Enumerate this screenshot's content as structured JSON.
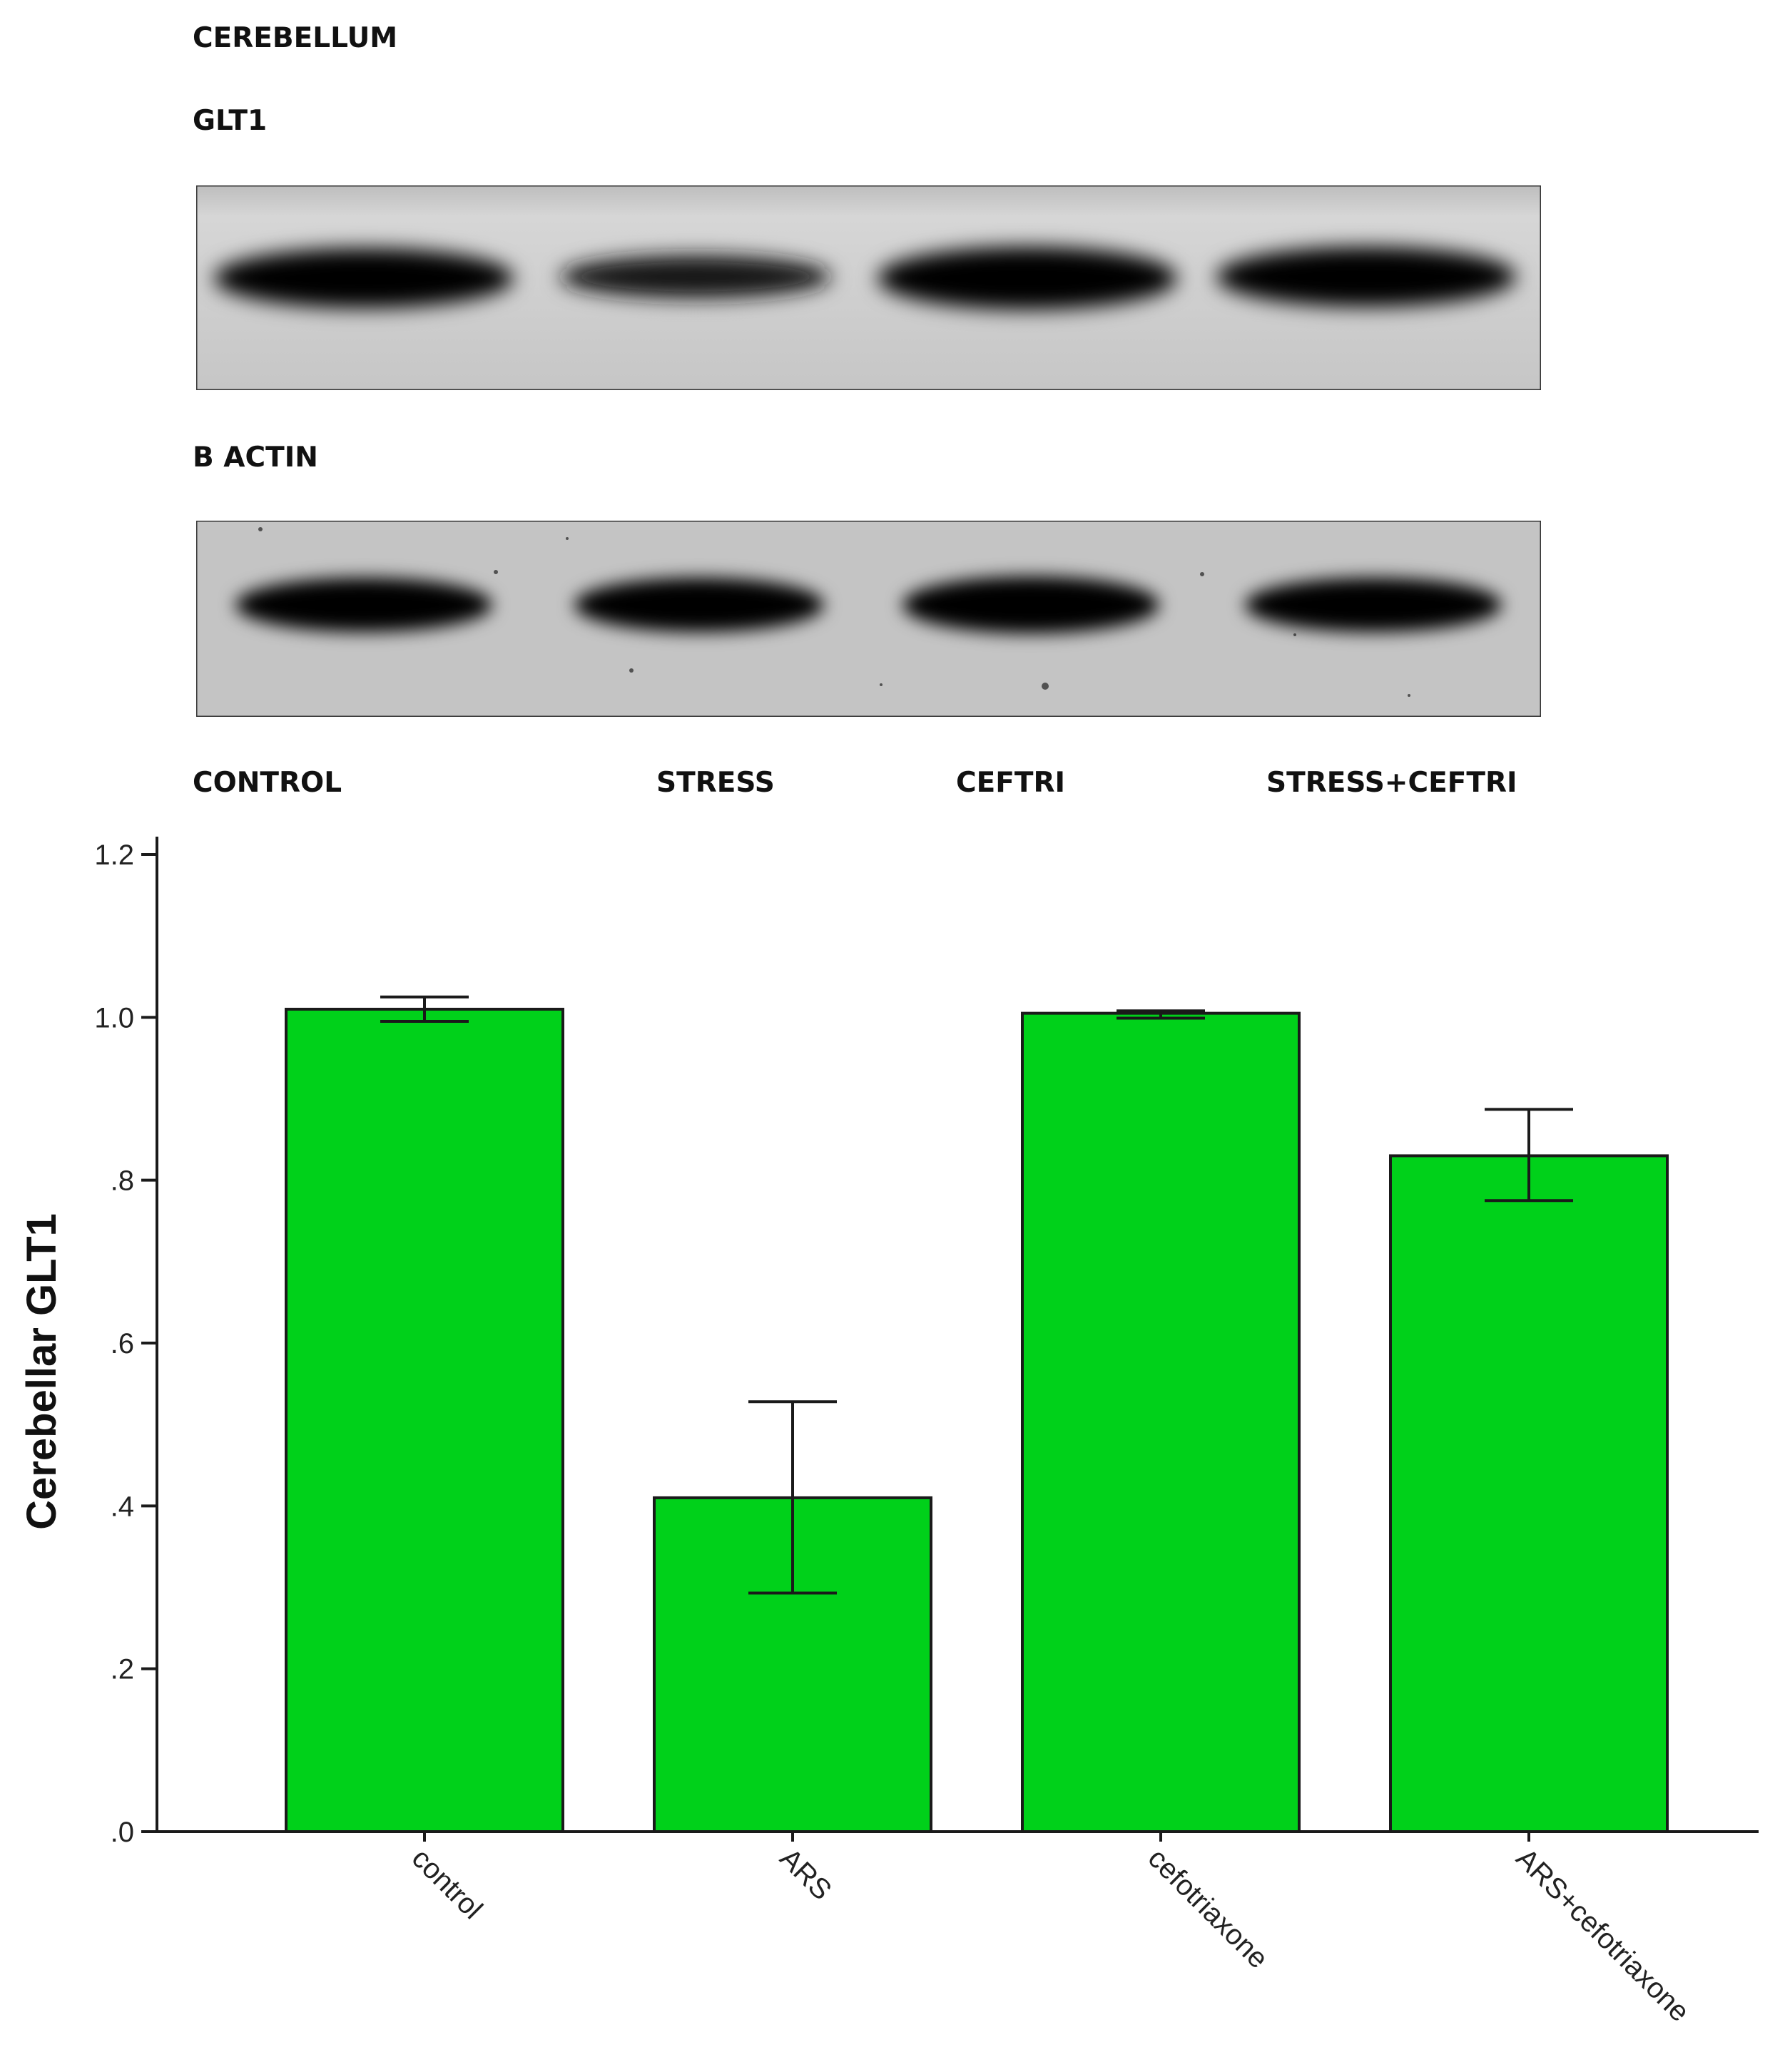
{
  "figure": {
    "region_label": "CEREBELLUM",
    "blot_top_label": "GLT1",
    "blot_bottom_label": "B ACTIN",
    "lane_labels": [
      "CONTROL",
      "STRESS",
      "CEFTRI",
      "STRESS+CEFTRI"
    ]
  },
  "colors": {
    "bar_fill": "#00d11a",
    "bar_stroke": "#1a1a1a",
    "axis": "#1a1a1a",
    "blot_background": "#c8c8c8",
    "band": "#050505"
  },
  "chart_data": {
    "type": "bar",
    "categories": [
      "control",
      "ARS",
      "cefotriaxone",
      "ARS+cefotriaxone"
    ],
    "values": [
      1.01,
      0.41,
      1.005,
      0.83
    ],
    "error_bars": [
      {
        "low": 0.995,
        "high": 1.025
      },
      {
        "low": 0.293,
        "high": 0.528
      },
      {
        "low": 0.999,
        "high": 1.008
      },
      {
        "low": 0.775,
        "high": 0.887
      }
    ],
    "ylabel": "Cerebellar GLT1",
    "xlabel": "",
    "ylim": [
      0,
      1.2
    ],
    "yticks": [
      {
        "value": 0.0,
        "label": ".0"
      },
      {
        "value": 0.2,
        "label": ".2"
      },
      {
        "value": 0.4,
        "label": ".4"
      },
      {
        "value": 0.6,
        "label": ".6"
      },
      {
        "value": 0.8,
        "label": ".8"
      },
      {
        "value": 1.0,
        "label": "1.0"
      },
      {
        "value": 1.2,
        "label": "1.2"
      }
    ],
    "grid": false,
    "legend": "none"
  }
}
